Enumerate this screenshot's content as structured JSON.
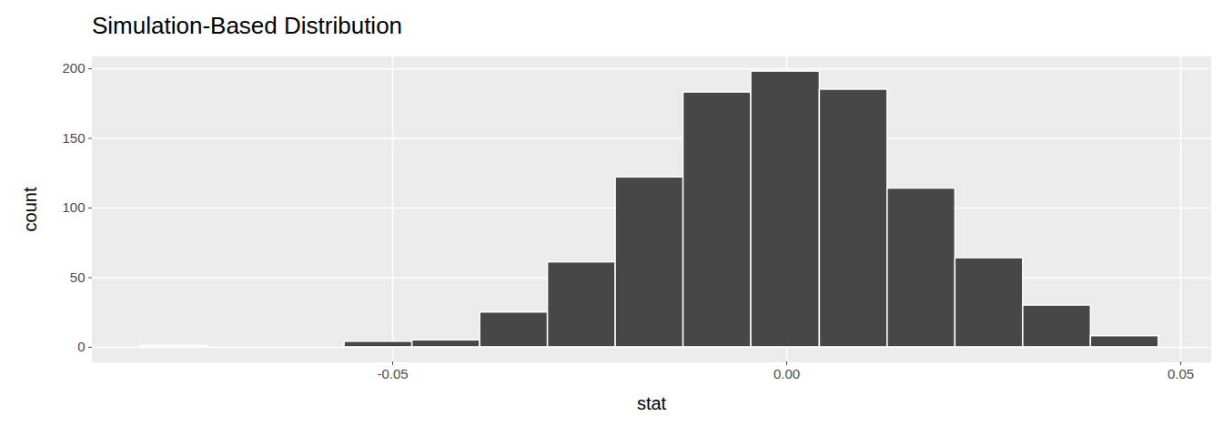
{
  "chart_data": {
    "type": "histogram",
    "title": "Simulation-Based Distribution",
    "x_label": "stat",
    "y_label": "count",
    "bins": [
      -0.0819,
      -0.0733,
      -0.0647,
      -0.0561,
      -0.0475,
      -0.0389,
      -0.0303,
      -0.0217,
      -0.0131,
      -0.0045,
      0.0042,
      0.0128,
      0.0214,
      0.03,
      0.0386,
      0.0472
    ],
    "values": [
      1,
      0,
      0,
      4,
      5,
      25,
      61,
      122,
      183,
      198,
      185,
      114,
      64,
      30,
      8
    ],
    "color": "#474747",
    "xlim": [
      -0.0881,
      0.0538
    ],
    "xticks": [
      {
        "value": -0.05,
        "label": "-0.05"
      },
      {
        "value": 0,
        "label": "0.00"
      },
      {
        "value": 0.05,
        "label": "0.05"
      }
    ],
    "ylim": [
      -10.5,
      208.5
    ],
    "yticks": [
      0,
      50,
      100,
      150,
      200
    ],
    "grid": true
  }
}
